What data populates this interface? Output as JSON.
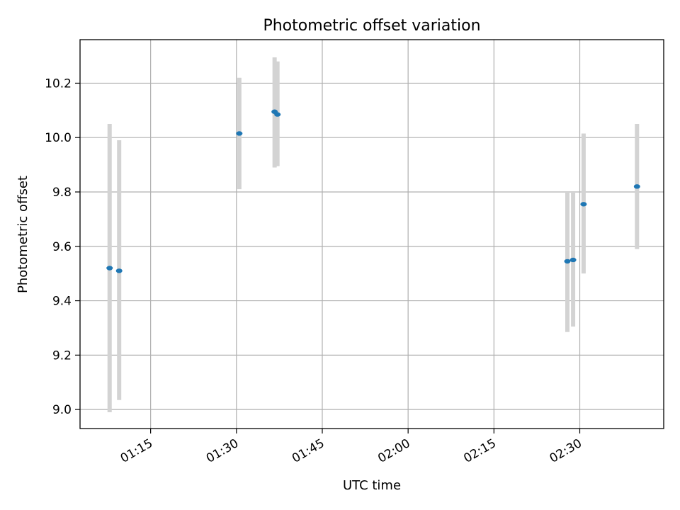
{
  "chart_data": {
    "type": "scatter",
    "title": "Photometric offset variation",
    "xlabel": "UTC time",
    "ylabel": "Photometric offset",
    "xlim": [
      "01:02:40",
      "02:44:40"
    ],
    "ylim": [
      8.93,
      10.36
    ],
    "x_ticks": [
      "01:15",
      "01:30",
      "01:45",
      "02:00",
      "02:15",
      "02:30"
    ],
    "y_ticks": [
      9.0,
      9.2,
      9.4,
      9.6,
      9.8,
      10.0,
      10.2
    ],
    "grid": true,
    "points": [
      {
        "x": "01:07:50",
        "y": 9.52,
        "lower": 8.99,
        "upper": 10.05
      },
      {
        "x": "01:09:30",
        "y": 9.51,
        "lower": 9.035,
        "upper": 9.99
      },
      {
        "x": "01:30:30",
        "y": 10.015,
        "lower": 9.81,
        "upper": 10.22
      },
      {
        "x": "01:36:40",
        "y": 10.095,
        "lower": 9.89,
        "upper": 10.295
      },
      {
        "x": "01:37:10",
        "y": 10.085,
        "lower": 9.895,
        "upper": 10.28
      },
      {
        "x": "02:27:50",
        "y": 9.545,
        "lower": 9.285,
        "upper": 9.8
      },
      {
        "x": "02:28:50",
        "y": 9.55,
        "lower": 9.305,
        "upper": 9.8
      },
      {
        "x": "02:30:40",
        "y": 9.755,
        "lower": 9.5,
        "upper": 10.015
      },
      {
        "x": "02:40:00",
        "y": 9.82,
        "lower": 9.59,
        "upper": 10.05
      }
    ],
    "colors": {
      "marker": "#1f77b4",
      "errorbar": "#d3d3d3",
      "grid": "#b0b0b0",
      "axes": "#000000"
    }
  }
}
